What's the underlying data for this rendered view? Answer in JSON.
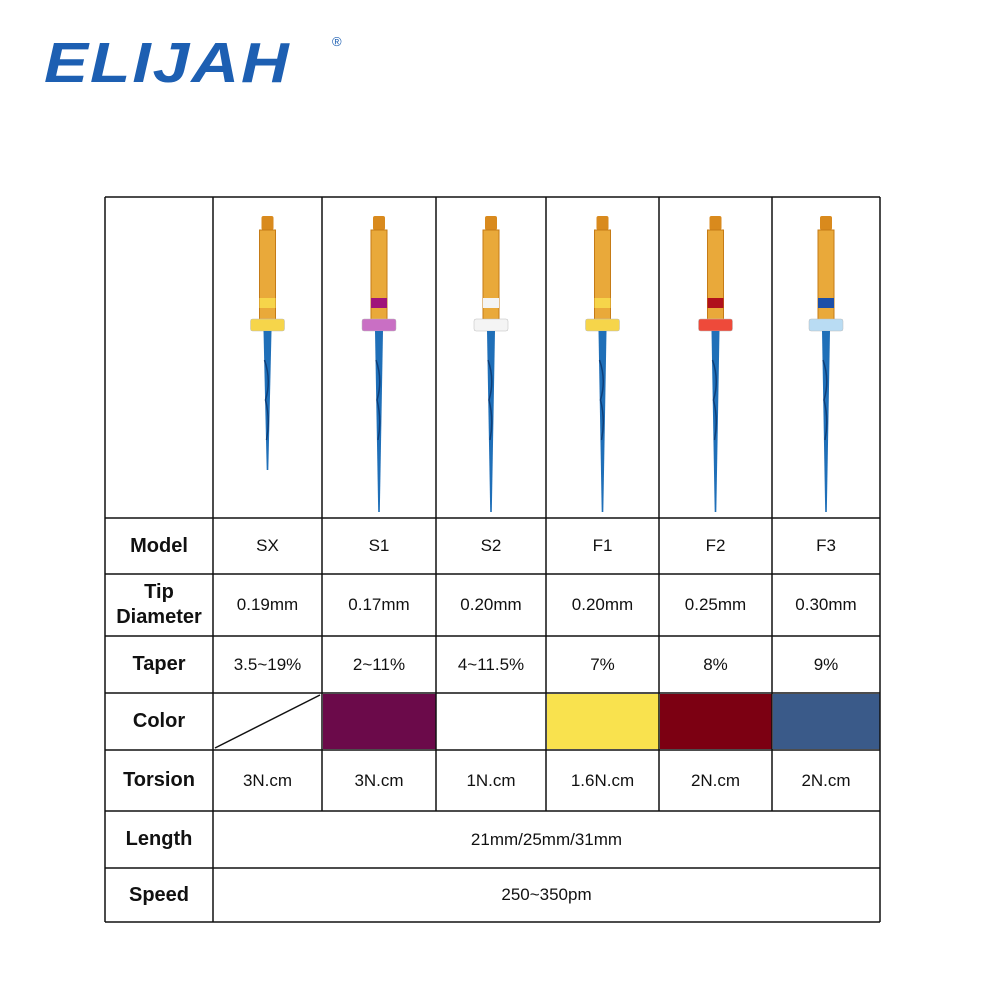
{
  "header": {
    "logo": "ELIJAH",
    "registered": "®"
  },
  "table": {
    "row_labels": [
      "Model",
      "Tip Diameter",
      "Taper",
      "Color",
      "Torsion",
      "Length",
      "Speed"
    ],
    "models": [
      "SX",
      "S1",
      "S2",
      "F1",
      "F2",
      "F3"
    ],
    "tip_diameter": [
      "0.19mm",
      "0.17mm",
      "0.20mm",
      "0.20mm",
      "0.25mm",
      "0.30mm"
    ],
    "taper": [
      "3.5~19%",
      "2~11%",
      "4~11.5%",
      "7%",
      "8%",
      "9%"
    ],
    "colors": [
      null,
      "#6b0a4a",
      "#ffffff",
      "#f9e24e",
      "#7c0012",
      "#3a5a89"
    ],
    "torsion": [
      "3N.cm",
      "3N.cm",
      "1N.cm",
      "1.6N.cm",
      "2N.cm",
      "2N.cm"
    ],
    "length": "21mm/25mm/31mm",
    "speed": "250~350pm"
  }
}
